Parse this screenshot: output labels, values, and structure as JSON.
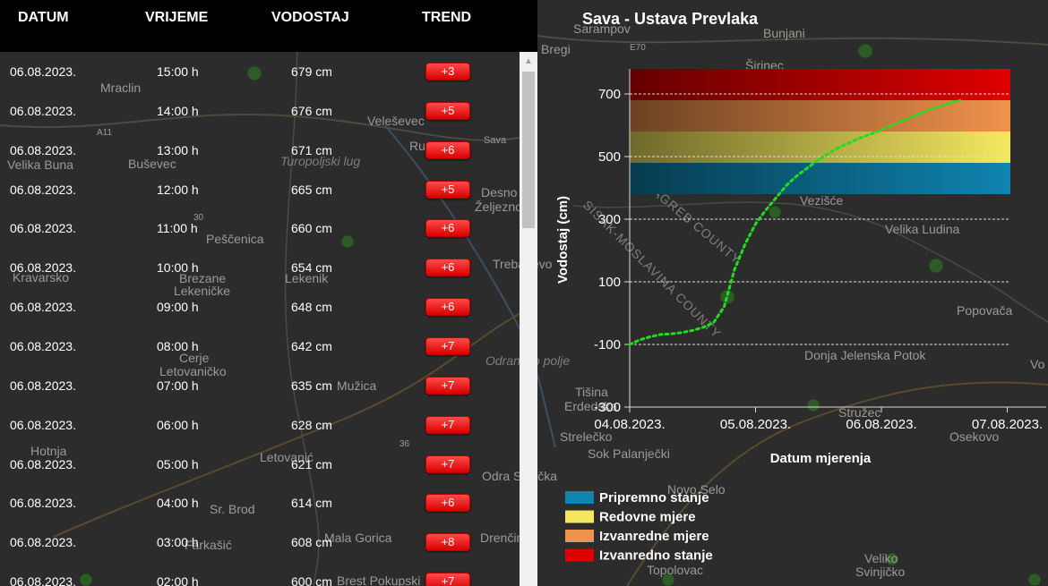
{
  "table": {
    "headers": {
      "date": "DATUM",
      "time": "VRIJEME",
      "level": "VODOSTAJ",
      "trend": "TREND"
    },
    "rows": [
      {
        "date": "06.08.2023.",
        "time": "15:00 h",
        "level": "679 cm",
        "trend": "+3"
      },
      {
        "date": "06.08.2023.",
        "time": "14:00 h",
        "level": "676 cm",
        "trend": "+5"
      },
      {
        "date": "06.08.2023.",
        "time": "13:00 h",
        "level": "671 cm",
        "trend": "+6"
      },
      {
        "date": "06.08.2023.",
        "time": "12:00 h",
        "level": "665 cm",
        "trend": "+5"
      },
      {
        "date": "06.08.2023.",
        "time": "11:00 h",
        "level": "660 cm",
        "trend": "+6"
      },
      {
        "date": "06.08.2023.",
        "time": "10:00 h",
        "level": "654 cm",
        "trend": "+6"
      },
      {
        "date": "06.08.2023.",
        "time": "09:00 h",
        "level": "648 cm",
        "trend": "+6"
      },
      {
        "date": "06.08.2023.",
        "time": "08:00 h",
        "level": "642 cm",
        "trend": "+7"
      },
      {
        "date": "06.08.2023.",
        "time": "07:00 h",
        "level": "635 cm",
        "trend": "+7"
      },
      {
        "date": "06.08.2023.",
        "time": "06:00 h",
        "level": "628 cm",
        "trend": "+7"
      },
      {
        "date": "06.08.2023.",
        "time": "05:00 h",
        "level": "621 cm",
        "trend": "+7"
      },
      {
        "date": "06.08.2023.",
        "time": "04:00 h",
        "level": "614 cm",
        "trend": "+6"
      },
      {
        "date": "06.08.2023.",
        "time": "03:00 h",
        "level": "608 cm",
        "trend": "+8"
      },
      {
        "date": "06.08.2023.",
        "time": "02:00 h",
        "level": "600 cm",
        "trend": "+7"
      }
    ]
  },
  "map_labels": [
    "Sarampov",
    "Bunjani",
    "E70",
    "Bregi",
    "Širinec",
    "Mraclin",
    "A11",
    "Veleševec",
    "Ru",
    "Sava",
    "Velika Buna",
    "Buševec",
    "Turopoljski lug",
    "Desno",
    "Željezno",
    "30",
    "Peščenica",
    "Vezišće",
    "Velika Ludina",
    "SISAK-MOSLAVINA COUNTY",
    "ZAGREB COUNTY",
    "Kravarsko",
    "Brezane",
    "Lekeničke",
    "Lekenik",
    "Trebarjevo",
    "Popovača",
    "Cerje",
    "Letovaničko",
    "Odransko polje",
    "Mužica",
    "Donja Jelenska Potok",
    "Hotnja",
    "Letovanić",
    "36",
    "Tišina",
    "Erdedska",
    "Stružec",
    "Strelečko",
    "Osekovo",
    "Sok Palanječki",
    "Odra Sisačka",
    "Sr. Brod",
    "Farkašić",
    "Mala Gorica",
    "Brest Pokupski",
    "Drenčina",
    "Novo Selo",
    "Topolovac",
    "Veliko",
    "Svinjičko",
    "Vo"
  ],
  "chart_data": {
    "type": "line",
    "title": "Sava - Ustava Prevlaka",
    "xlabel": "Datum mjerenja",
    "ylabel": "Vodostaj (cm)",
    "x_ticks": [
      "04.08.2023.",
      "05.08.2023.",
      "06.08.2023.",
      "07.08.2023."
    ],
    "y_ticks": [
      700,
      500,
      300,
      100,
      -100,
      -300
    ],
    "ylim": [
      -300,
      780
    ],
    "xlim": [
      "2023-08-04T00:00",
      "2023-08-07T00:00"
    ],
    "grid": "horizontal dashed",
    "legend_position": "bottom-left",
    "zones": [
      {
        "name": "Pripremno stanje",
        "from": 380,
        "to": 480,
        "color": "#0f84b0"
      },
      {
        "name": "Redovne mjere",
        "from": 480,
        "to": 580,
        "color": "#f5e860"
      },
      {
        "name": "Izvanredne mjere",
        "from": 580,
        "to": 680,
        "color": "#f0924c"
      },
      {
        "name": "Izvanredno stanje",
        "from": 680,
        "to": 780,
        "color": "#e00000"
      }
    ],
    "series": [
      {
        "color": "#22dd22",
        "style": "dotted",
        "points": [
          [
            "2023-08-04T00:00",
            -100
          ],
          [
            "2023-08-04T02:00",
            -85
          ],
          [
            "2023-08-04T04:00",
            -75
          ],
          [
            "2023-08-04T06:00",
            -68
          ],
          [
            "2023-08-04T08:00",
            -66
          ],
          [
            "2023-08-04T10:00",
            -62
          ],
          [
            "2023-08-04T12:00",
            -55
          ],
          [
            "2023-08-04T14:00",
            -45
          ],
          [
            "2023-08-04T16:00",
            -30
          ],
          [
            "2023-08-04T18:00",
            20
          ],
          [
            "2023-08-04T20:00",
            140
          ],
          [
            "2023-08-04T22:00",
            220
          ],
          [
            "2023-08-05T00:00",
            285
          ],
          [
            "2023-08-05T02:00",
            330
          ],
          [
            "2023-08-05T04:00",
            370
          ],
          [
            "2023-08-05T06:00",
            410
          ],
          [
            "2023-08-05T08:00",
            440
          ],
          [
            "2023-08-05T10:00",
            465
          ],
          [
            "2023-08-05T12:00",
            490
          ],
          [
            "2023-08-05T14:00",
            510
          ],
          [
            "2023-08-05T16:00",
            530
          ],
          [
            "2023-08-05T18:00",
            545
          ],
          [
            "2023-08-05T20:00",
            560
          ],
          [
            "2023-08-05T22:00",
            572
          ],
          [
            "2023-08-06T00:00",
            585
          ],
          [
            "2023-08-06T02:00",
            600
          ],
          [
            "2023-08-06T04:00",
            614
          ],
          [
            "2023-08-06T06:00",
            628
          ],
          [
            "2023-08-06T08:00",
            642
          ],
          [
            "2023-08-06T10:00",
            654
          ],
          [
            "2023-08-06T12:00",
            665
          ],
          [
            "2023-08-06T14:00",
            676
          ],
          [
            "2023-08-06T15:00",
            679
          ]
        ]
      }
    ]
  }
}
